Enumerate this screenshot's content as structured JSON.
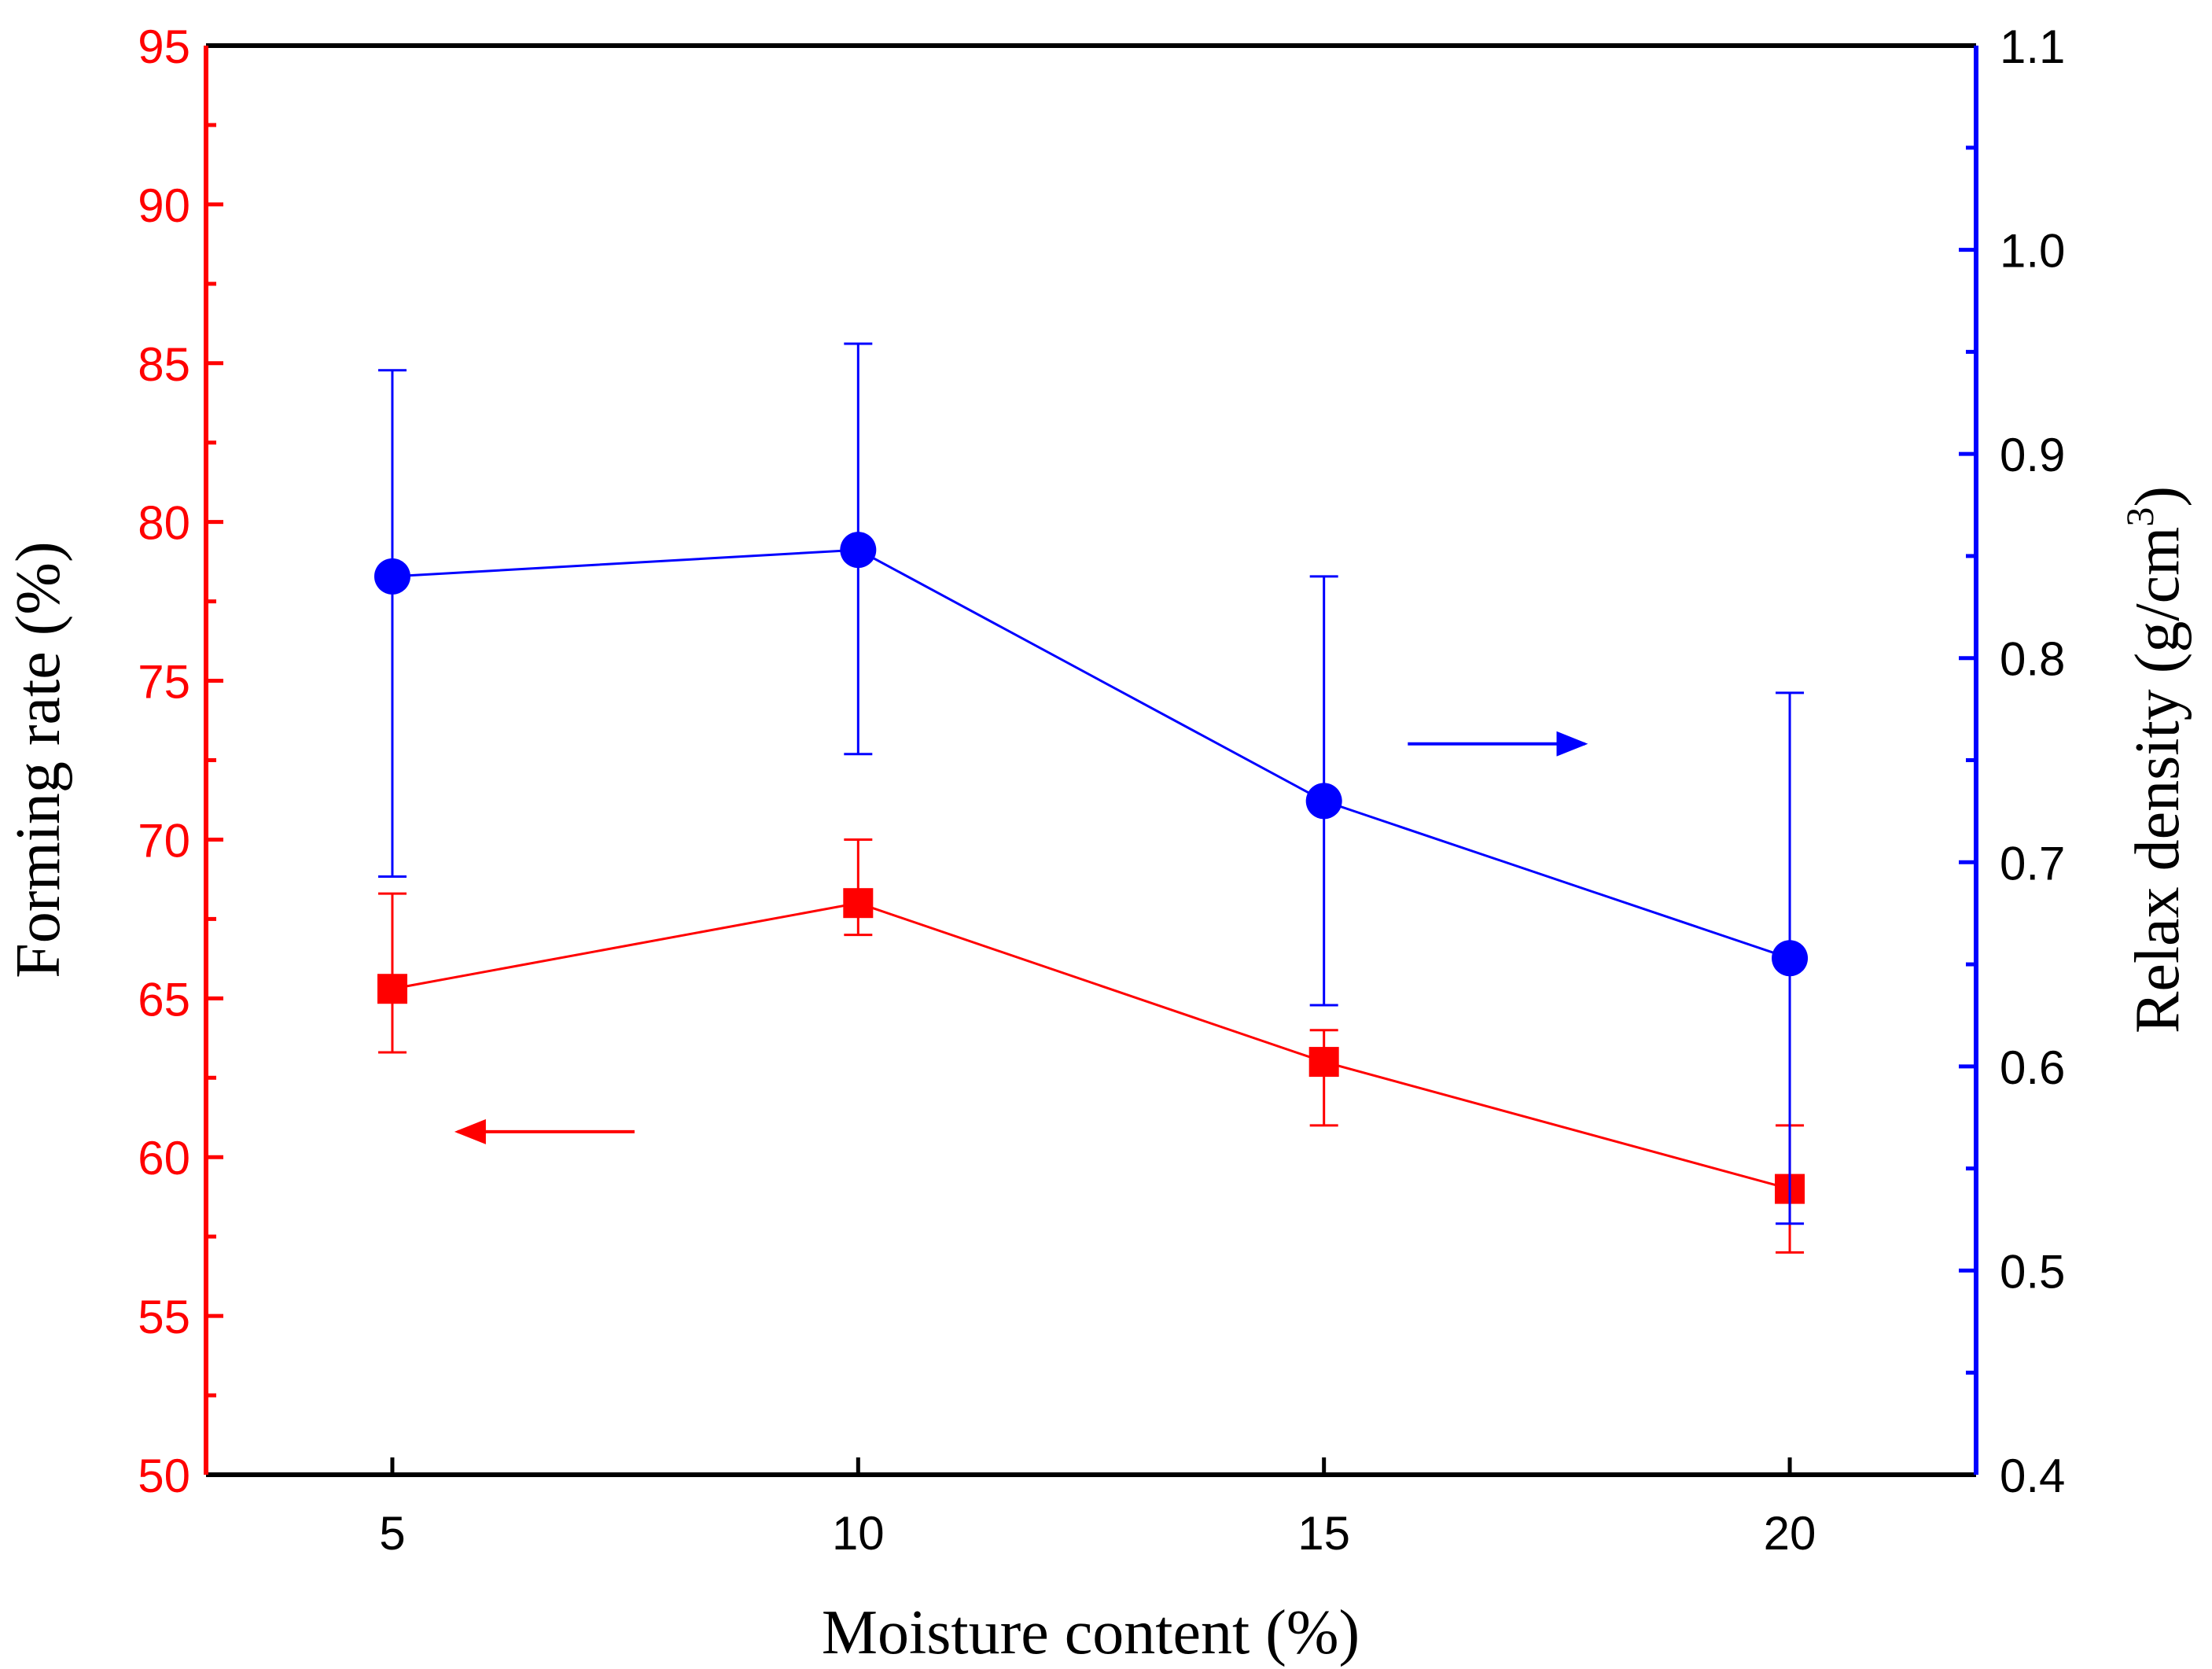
{
  "chart_data": {
    "type": "line",
    "x": [
      5,
      10,
      15,
      20
    ],
    "xlim": [
      3,
      22
    ],
    "xticks": [
      5,
      10,
      15,
      20
    ],
    "xlabel": "Moisture content (%)",
    "colors": {
      "forming": "#ff0000",
      "density": "#0000ff",
      "frame": "#000000"
    },
    "left_axis": {
      "label": "Forming rate (%)",
      "range": [
        50,
        95
      ],
      "ticks": [
        50,
        55,
        60,
        65,
        70,
        75,
        80,
        85,
        90,
        95
      ],
      "minor_step": 2.5
    },
    "right_axis": {
      "label": "Relax density (g/cm",
      "label_superscript": "3",
      "label_suffix": ")",
      "range": [
        0.4,
        1.1
      ],
      "ticks": [
        "0.4",
        "0.5",
        "0.6",
        "0.7",
        "0.8",
        "0.9",
        "1.0",
        "1.1"
      ],
      "minor_step": 0.05
    },
    "series": [
      {
        "name": "Forming rate",
        "axis": "left",
        "marker": "square",
        "values": [
          65.3,
          68.0,
          63.0,
          59.0
        ],
        "err_low": [
          63.3,
          67.0,
          61.0,
          57.0
        ],
        "err_high": [
          68.3,
          70.0,
          64.0,
          61.0
        ],
        "arrow": {
          "from": [
            7.6,
            60.8
          ],
          "to": [
            5.7,
            60.8
          ]
        }
      },
      {
        "name": "Relax density",
        "axis": "right",
        "marker": "circle",
        "values": [
          0.84,
          0.853,
          0.73,
          0.653
        ],
        "err_low": [
          0.693,
          0.753,
          0.63,
          0.523
        ],
        "err_high": [
          0.941,
          0.954,
          0.84,
          0.783
        ],
        "arrow": {
          "from": [
            15.9,
            0.758
          ],
          "to": [
            17.8,
            0.758
          ]
        }
      }
    ]
  }
}
